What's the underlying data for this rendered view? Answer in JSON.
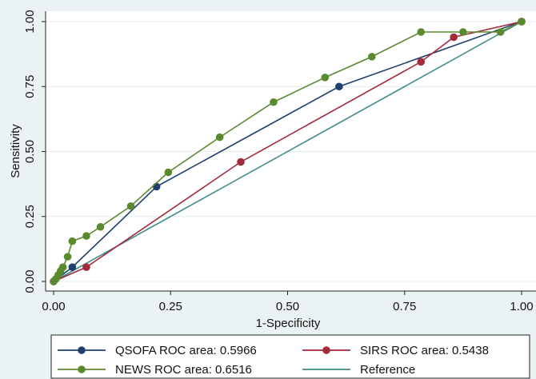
{
  "chart_data": {
    "type": "line",
    "title": "",
    "xlabel": "1-Specificity",
    "ylabel": "Sensitivity",
    "xlim": [
      0,
      1
    ],
    "ylim": [
      0,
      1
    ],
    "x_ticks": [
      "0.00",
      "0.25",
      "0.50",
      "0.75",
      "1.00"
    ],
    "y_ticks": [
      "0.00",
      "0.25",
      "0.50",
      "0.75",
      "1.00"
    ],
    "grid": "horizontal",
    "legend_position": "bottom",
    "series": [
      {
        "name": "QSOFA ROC area: 0.5966",
        "color": "#1f3f6e",
        "markers": true,
        "points": [
          [
            0,
            0
          ],
          [
            0.04,
            0.055
          ],
          [
            0.22,
            0.365
          ],
          [
            0.61,
            0.75
          ],
          [
            1.0,
            1.0
          ]
        ]
      },
      {
        "name": "SIRS ROC area: 0.5438",
        "color": "#a52a3a",
        "markers": true,
        "points": [
          [
            0,
            0
          ],
          [
            0.07,
            0.055
          ],
          [
            0.4,
            0.46
          ],
          [
            0.785,
            0.845
          ],
          [
            0.855,
            0.94
          ],
          [
            1.0,
            1.0
          ]
        ]
      },
      {
        "name": "NEWS ROC area: 0.6516",
        "color": "#5b8a2e",
        "markers": true,
        "points": [
          [
            0,
            0
          ],
          [
            0.005,
            0.01
          ],
          [
            0.01,
            0.025
          ],
          [
            0.015,
            0.04
          ],
          [
            0.02,
            0.055
          ],
          [
            0.03,
            0.095
          ],
          [
            0.04,
            0.155
          ],
          [
            0.07,
            0.175
          ],
          [
            0.1,
            0.21
          ],
          [
            0.165,
            0.29
          ],
          [
            0.245,
            0.42
          ],
          [
            0.355,
            0.555
          ],
          [
            0.47,
            0.69
          ],
          [
            0.58,
            0.785
          ],
          [
            0.68,
            0.865
          ],
          [
            0.785,
            0.96
          ],
          [
            0.875,
            0.96
          ],
          [
            0.955,
            0.96
          ],
          [
            1.0,
            1.0
          ]
        ]
      },
      {
        "name": "Reference",
        "color": "#3a8c8c",
        "markers": false,
        "points": [
          [
            0,
            0
          ],
          [
            1,
            1
          ]
        ]
      }
    ]
  }
}
